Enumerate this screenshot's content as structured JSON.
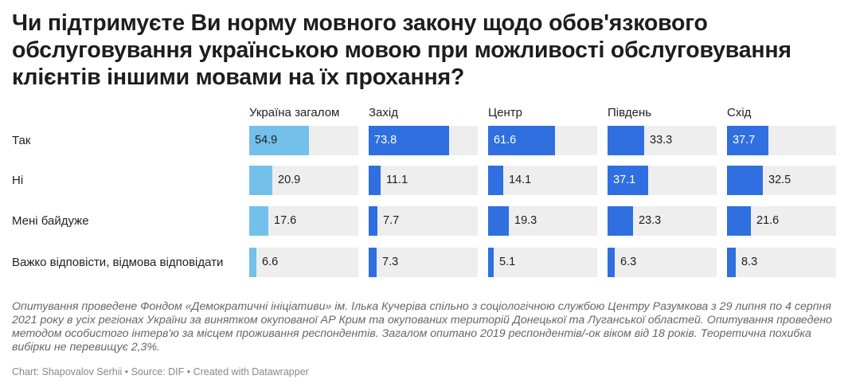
{
  "title": "Чи підтримуєте Ви норму мовного закону щодо обов'язкового обслуговування українською мовою при можливості обслуговування клієнтів іншими мовами на їх прохання?",
  "colors": {
    "total": "#73c0ea",
    "region": "#2f6fe0",
    "track": "#eeeeee"
  },
  "chart_data": {
    "type": "bar",
    "title": "Чи підтримуєте Ви норму мовного закону щодо обов'язкового обслуговування українською мовою при можливості обслуговування клієнтів іншими мовами на їх прохання?",
    "xlim": [
      0,
      100
    ],
    "categories": [
      "Так",
      "Ні",
      "Мені байдуже",
      "Важко відповісти, відмова відповідати"
    ],
    "series": [
      {
        "name": "Україна загалом",
        "values": [
          54.9,
          20.9,
          17.6,
          6.6
        ]
      },
      {
        "name": "Захід",
        "values": [
          73.8,
          11.1,
          7.7,
          7.3
        ]
      },
      {
        "name": "Центр",
        "values": [
          61.6,
          14.1,
          19.3,
          5.1
        ]
      },
      {
        "name": "Південь",
        "values": [
          33.3,
          37.1,
          23.3,
          6.3
        ]
      },
      {
        "name": "Схід",
        "values": [
          37.7,
          32.5,
          21.6,
          8.3
        ]
      }
    ]
  },
  "note": "Опитування проведене Фондом «Демократичні ініціативи» ім. Ілька Кучеріва спільно з соціологічною службою Центру Разумкова з 29 липня по 4 серпня 2021 року в усіх регіонах України за винятком окупованої АР Крим та окупованих територій Донецької та Луганської областей. Опитування проведено методом особистого інтерв'ю за місцем проживання респондентів. Загалом опитано 2019 респондентів/-ок віком від 18 років. Теоретична похибка вибірки не перевищує 2,3%.",
  "credit": "Chart: Shapovalov Serhii • Source: DIF • Created with Datawrapper"
}
